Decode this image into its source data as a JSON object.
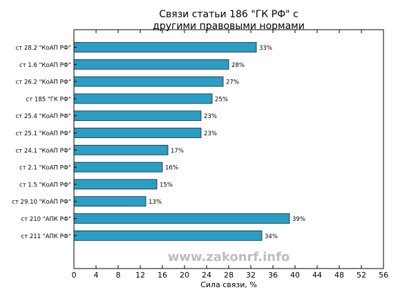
{
  "watermark": "www.zakonrf.info",
  "chart_data": {
    "type": "bar",
    "orientation": "horizontal",
    "title": "Связи статьи 186 \"ГК РФ\" с\nдругими правовыми нормами",
    "xlabel": "Сила связи, %",
    "ylabel": "",
    "xlim": [
      0,
      56
    ],
    "xticks": [
      0,
      4,
      8,
      12,
      16,
      20,
      24,
      28,
      32,
      36,
      40,
      44,
      48,
      52,
      56
    ],
    "grid": false,
    "bar_color": "#2b9ec6",
    "categories": [
      "ст 28.2 \"КоАП РФ\"",
      "ст 1.6 \"КоАП РФ\"",
      "ст 26.2 \"КоАП РФ\"",
      "ст 185 \"ГК РФ\"",
      "ст 25.4 \"КоАП РФ\"",
      "ст 25.1 \"КоАП РФ\"",
      "ст 24.1 \"КоАП РФ\"",
      "ст 2.1 \"КоАП РФ\"",
      "ст 1.5 \"КоАП РФ\"",
      "ст 29.10 \"КоАП РФ\"",
      "ст 210 \"АПК РФ\"",
      "ст 211 \"АПК РФ\""
    ],
    "values": [
      33,
      28,
      27,
      25,
      23,
      23,
      17,
      16,
      15,
      13,
      39,
      34
    ],
    "data_labels": [
      "33%",
      "28%",
      "27%",
      "25%",
      "23%",
      "23%",
      "17%",
      "16%",
      "15%",
      "13%",
      "39%",
      "34%"
    ]
  }
}
